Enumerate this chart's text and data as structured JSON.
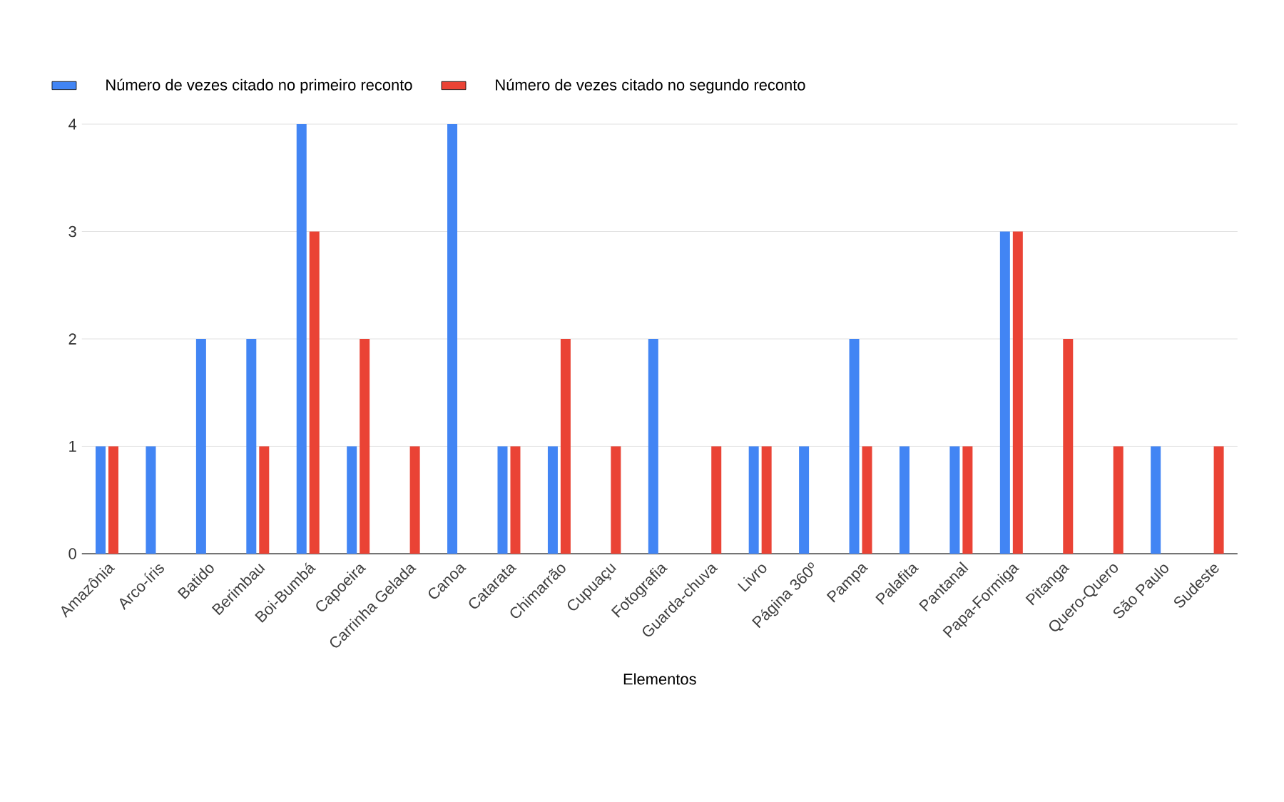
{
  "chart_data": {
    "type": "bar",
    "xlabel": "Elementos",
    "categories": [
      "Amazônia",
      "Arco-íris",
      "Batido",
      "Berimbau",
      "Boi-Bumbá",
      "Capoeira",
      "Carrinha Gelada",
      "Canoa",
      "Catarata",
      "Chimarrão",
      "Cupuaçu",
      "Fotografia",
      "Guarda-chuva",
      "Livro",
      "Página 360º",
      "Pampa",
      "Palafita",
      "Pantanal",
      "Papa-Formiga",
      "Pitanga",
      "Quero-Quero",
      "São Paulo",
      "Sudeste"
    ],
    "series": [
      {
        "name": "Número de vezes citado no primeiro reconto",
        "color": "#4285f4",
        "values": [
          1,
          1,
          2,
          2,
          4,
          1,
          0,
          4,
          1,
          1,
          0,
          2,
          0,
          1,
          1,
          2,
          1,
          1,
          3,
          0,
          0,
          1,
          0
        ]
      },
      {
        "name": "Número de vezes citado no segundo reconto",
        "color": "#ea4335",
        "values": [
          1,
          0,
          0,
          1,
          3,
          2,
          1,
          0,
          1,
          2,
          1,
          0,
          1,
          1,
          0,
          1,
          0,
          1,
          3,
          2,
          1,
          0,
          1
        ]
      }
    ],
    "ylim": [
      0,
      4
    ],
    "yticks": [
      0,
      1,
      2,
      3,
      4
    ],
    "grid": "y",
    "legend": "top left"
  }
}
